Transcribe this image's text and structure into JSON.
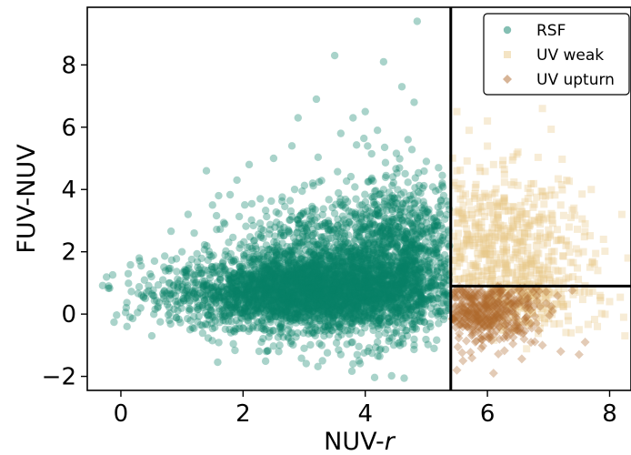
{
  "chart_data": {
    "type": "scatter",
    "xlabel_main": "NUV-",
    "xlabel_italic": "r",
    "ylabel": "FUV-NUV",
    "xlim": [
      -0.55,
      8.35
    ],
    "ylim": [
      -2.45,
      9.85
    ],
    "xticks": [
      0,
      2,
      4,
      6,
      8
    ],
    "yticks": [
      -2,
      0,
      2,
      4,
      6,
      8
    ],
    "ytick_labels": [
      "−2",
      "0",
      "2",
      "4",
      "6",
      "8"
    ],
    "grid": false,
    "legend_position": "top-right",
    "dividers": {
      "vertical_x": 5.4,
      "horizontal_y": 0.9,
      "horizontal_x_from": 5.4
    },
    "series": [
      {
        "name": "RSF",
        "marker": "circle",
        "color": "#0a8068",
        "points": [
          [
            -0.2,
            0.9
          ],
          [
            0.1,
            -0.4
          ],
          [
            0.15,
            -0.1
          ],
          [
            0.3,
            1.8
          ],
          [
            0.4,
            0.5
          ],
          [
            0.5,
            1.2
          ],
          [
            0.55,
            1.7
          ],
          [
            0.6,
            0.2
          ],
          [
            0.7,
            0.6
          ],
          [
            0.8,
            1.0
          ],
          [
            0.9,
            0.4
          ],
          [
            1.0,
            2.0
          ],
          [
            1.1,
            3.2
          ],
          [
            1.2,
            2.6
          ],
          [
            1.4,
            4.6
          ],
          [
            1.5,
            3.5
          ],
          [
            1.6,
            3.8
          ],
          [
            1.9,
            4.3
          ],
          [
            2.1,
            4.8
          ],
          [
            2.5,
            5.0
          ],
          [
            2.8,
            5.4
          ],
          [
            2.9,
            6.3
          ],
          [
            3.2,
            6.9
          ],
          [
            3.5,
            8.3
          ],
          [
            3.6,
            5.8
          ],
          [
            3.8,
            6.3
          ],
          [
            4.0,
            6.5
          ],
          [
            4.2,
            5.9
          ],
          [
            4.3,
            8.1
          ],
          [
            4.6,
            7.3
          ],
          [
            4.8,
            6.8
          ],
          [
            4.85,
            9.4
          ],
          [
            4.7,
            5.6
          ],
          [
            5.0,
            4.9
          ],
          [
            5.2,
            4.7
          ],
          [
            2.3,
            -0.9
          ],
          [
            2.6,
            -1.0
          ],
          [
            3.3,
            -1.5
          ],
          [
            3.8,
            -1.6
          ],
          [
            3.9,
            -1.5
          ],
          [
            4.2,
            -0.9
          ],
          [
            4.6,
            -0.7
          ],
          [
            4.8,
            -1.0
          ],
          [
            5.0,
            -0.5
          ],
          [
            5.2,
            -0.3
          ],
          [
            3.0,
            -1.1
          ],
          [
            3.6,
            -1.3
          ],
          [
            1.8,
            -0.6
          ]
        ]
      },
      {
        "name": "UV weak",
        "marker": "square",
        "color": "#e9c98a",
        "points": [
          [
            5.5,
            6.5
          ],
          [
            5.7,
            5.9
          ],
          [
            6.0,
            6.2
          ],
          [
            6.5,
            5.2
          ],
          [
            6.9,
            6.6
          ],
          [
            7.3,
            4.3
          ],
          [
            7.7,
            4.0
          ],
          [
            8.2,
            3.2
          ],
          [
            8.3,
            1.8
          ],
          [
            7.9,
            2.4
          ],
          [
            7.6,
            2.9
          ],
          [
            7.2,
            3.5
          ],
          [
            6.8,
            2.2
          ],
          [
            6.3,
            1.5
          ],
          [
            5.8,
            2.8
          ],
          [
            5.6,
            3.8
          ],
          [
            6.1,
            4.8
          ],
          [
            6.7,
            3.9
          ],
          [
            7.4,
            1.2
          ],
          [
            8.0,
            0.4
          ],
          [
            7.8,
            -0.4
          ],
          [
            8.25,
            -0.7
          ],
          [
            7.5,
            -0.5
          ],
          [
            6.6,
            1.1
          ],
          [
            5.9,
            1.9
          ],
          [
            7.0,
            1.7
          ],
          [
            6.4,
            3.0
          ],
          [
            5.5,
            4.6
          ]
        ]
      },
      {
        "name": "UV upturn",
        "marker": "diamond",
        "color": "#b06a2e",
        "points": [
          [
            5.5,
            0.8
          ],
          [
            5.6,
            0.2
          ],
          [
            5.8,
            -0.2
          ],
          [
            6.0,
            0.3
          ],
          [
            6.2,
            -0.4
          ],
          [
            6.4,
            -0.6
          ],
          [
            6.6,
            -0.8
          ],
          [
            6.9,
            -1.0
          ],
          [
            7.2,
            -1.2
          ],
          [
            7.5,
            -1.3
          ],
          [
            6.1,
            -1.9
          ],
          [
            5.5,
            -1.8
          ],
          [
            5.6,
            -1.5
          ],
          [
            5.9,
            -1.1
          ],
          [
            6.3,
            0.1
          ],
          [
            5.7,
            0.6
          ],
          [
            7.6,
            -0.9
          ],
          [
            6.8,
            -0.3
          ]
        ]
      }
    ],
    "clouds": [
      {
        "series": 0,
        "cx": 3.0,
        "cy": 0.7,
        "sx": 1.1,
        "sy": 0.55,
        "n": 2600,
        "xmin": -0.3,
        "xmax": 5.38
      },
      {
        "series": 0,
        "cx": 3.6,
        "cy": 1.4,
        "sx": 0.9,
        "sy": 1.1,
        "n": 1400,
        "xmin": 0.5,
        "xmax": 5.38
      },
      {
        "series": 0,
        "cx": 4.6,
        "cy": 2.0,
        "sx": 0.5,
        "sy": 1.2,
        "n": 700,
        "xmin": 2.0,
        "xmax": 5.38
      },
      {
        "series": 1,
        "cx": 6.2,
        "cy": 2.3,
        "sx": 0.7,
        "sy": 1.1,
        "n": 520,
        "xmin": 5.42,
        "xmax": 8.3
      },
      {
        "series": 1,
        "cx": 6.6,
        "cy": 0.6,
        "sx": 0.6,
        "sy": 0.6,
        "n": 220,
        "xmin": 5.42,
        "xmax": 8.3
      },
      {
        "series": 2,
        "cx": 5.9,
        "cy": 0.1,
        "sx": 0.45,
        "sy": 0.55,
        "n": 480,
        "xmin": 5.42,
        "xmax": 8.0
      }
    ]
  }
}
